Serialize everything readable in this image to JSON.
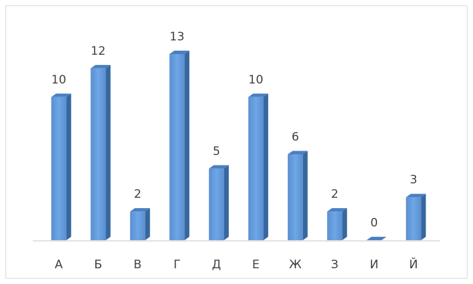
{
  "chart_data": {
    "type": "bar3d",
    "categories": [
      "А",
      "Б",
      "В",
      "Г",
      "Д",
      "Е",
      "Ж",
      "З",
      "И",
      "Й"
    ],
    "values": [
      10,
      12,
      2,
      13,
      5,
      10,
      6,
      2,
      0,
      3
    ],
    "color": "#5b9bd5"
  }
}
